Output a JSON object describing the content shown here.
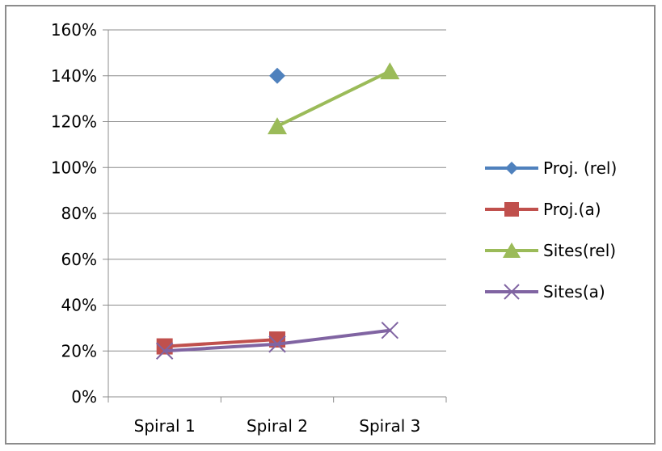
{
  "chart_data": {
    "type": "line",
    "title": "",
    "xlabel": "",
    "ylabel": "",
    "categories": [
      "Spiral 1",
      "Spiral 2",
      "Spiral 3"
    ],
    "ylim": [
      0,
      1.6
    ],
    "y_ticks": [
      0,
      0.2,
      0.4,
      0.6,
      0.8,
      1.0,
      1.2,
      1.4,
      1.6
    ],
    "y_tick_labels": [
      "0%",
      "20%",
      "40%",
      "60%",
      "80%",
      "100%",
      "120%",
      "140%",
      "160%"
    ],
    "grid": true,
    "legend_position": "right",
    "series": [
      {
        "name": "Proj. (rel)",
        "values": [
          null,
          1.4,
          null
        ],
        "color": "#4f81bd",
        "marker": "diamond"
      },
      {
        "name": "Proj.(a)",
        "values": [
          0.22,
          0.25,
          null
        ],
        "color": "#c0504d",
        "marker": "square"
      },
      {
        "name": "Sites(rel)",
        "values": [
          null,
          1.18,
          1.42
        ],
        "color": "#9bbb59",
        "marker": "triangle"
      },
      {
        "name": "Sites(a)",
        "values": [
          0.2,
          0.23,
          0.29
        ],
        "color": "#8064a2",
        "marker": "x"
      }
    ]
  }
}
